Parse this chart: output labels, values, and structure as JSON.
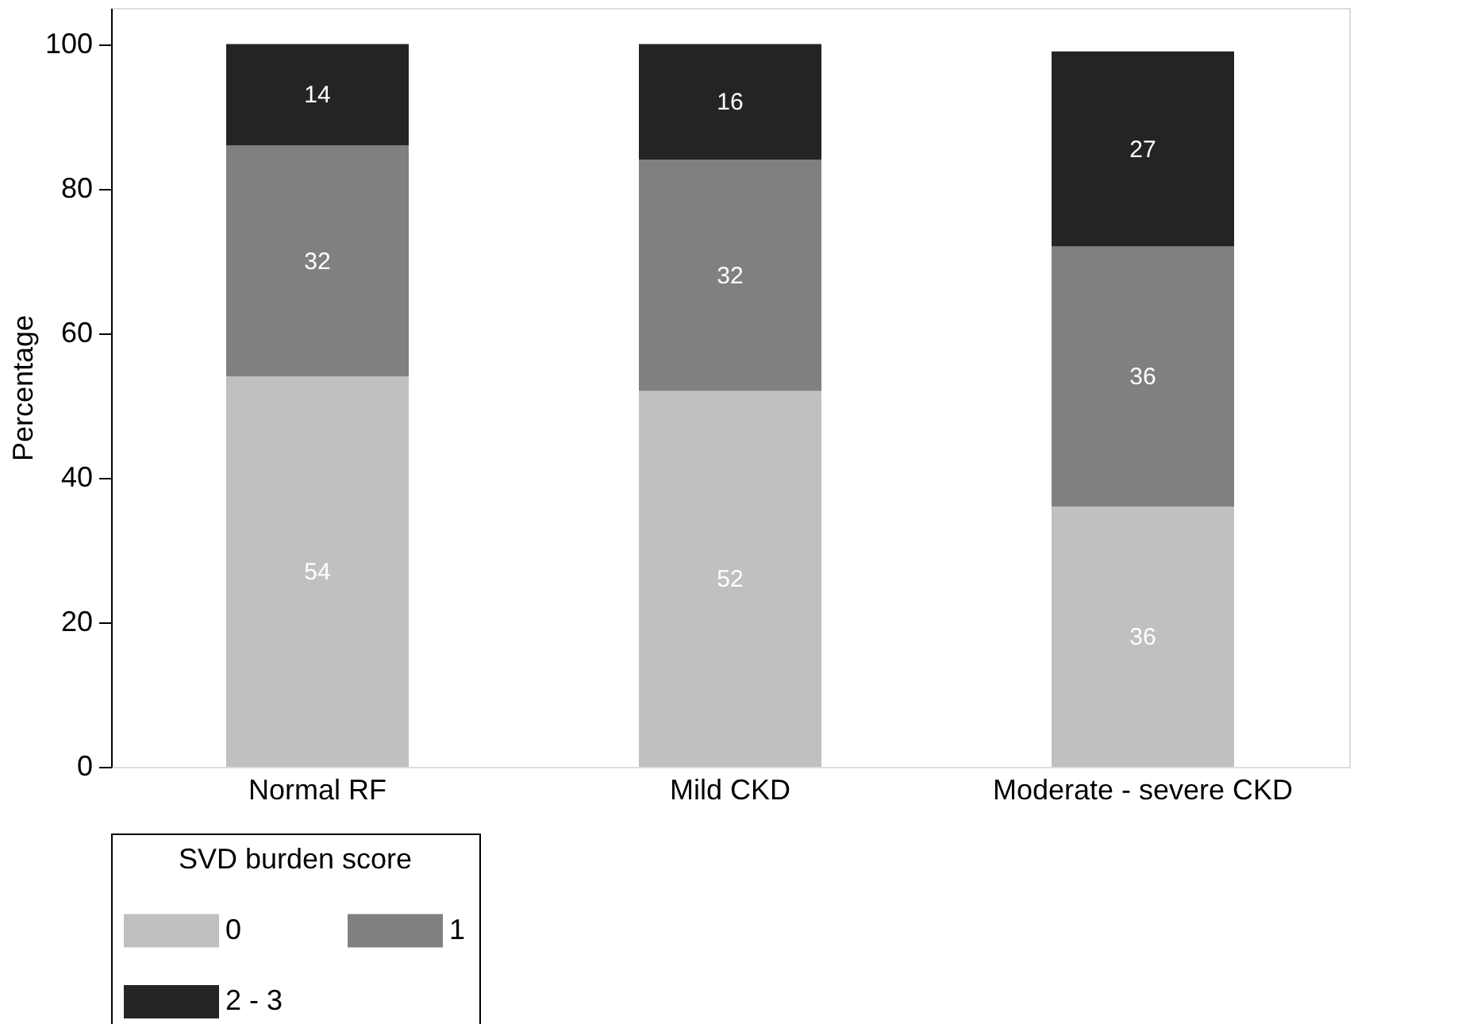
{
  "chart_data": {
    "type": "bar",
    "stacked": true,
    "ylabel": "Percentage",
    "legend_title": "SVD burden score",
    "categories": [
      "Normal RF",
      "Mild CKD",
      "Moderate - severe CKD"
    ],
    "series": [
      {
        "name": "0",
        "color": "#c0c0c0",
        "values": [
          54,
          52,
          36
        ]
      },
      {
        "name": "1",
        "color": "#808080",
        "values": [
          32,
          32,
          36
        ]
      },
      {
        "name": "2 - 3",
        "color": "#242424",
        "values": [
          14,
          16,
          27
        ]
      }
    ],
    "ylim": [
      0,
      105
    ],
    "yticks": [
      0,
      20,
      40,
      60,
      80,
      100
    ],
    "grid": false,
    "data_labels": true,
    "legend": "bottom"
  }
}
